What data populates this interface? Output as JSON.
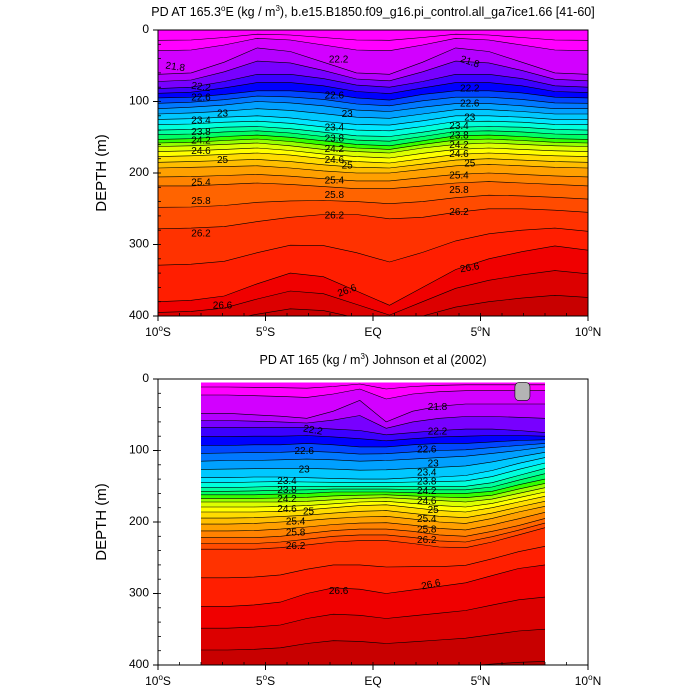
{
  "colors": {
    "palette": [
      "#ff00ff",
      "#d200ff",
      "#b400ff",
      "#7800ff",
      "#3c00ff",
      "#0000ff",
      "#0046ff",
      "#0078ff",
      "#00a0ff",
      "#00c8ff",
      "#00e6ff",
      "#00ffdc",
      "#00ffa0",
      "#00ff64",
      "#32ff00",
      "#96ff00",
      "#dcff00",
      "#ffff00",
      "#ffdc00",
      "#ffbe00",
      "#ffa000",
      "#ff8200",
      "#ff6400",
      "#ff4b00",
      "#ff3200",
      "#ff1e00",
      "#f00000",
      "#dc0000",
      "#c80000",
      "#b40000"
    ],
    "missing": "#b4b4b4"
  },
  "chart_data": [
    {
      "type": "contour",
      "title": "PD AT 165.3°E (kg / m³), b.e15.B1850.f09_g16.pi_control.all_ga7ice1.66 [41-60]",
      "title_parts": {
        "pre": "PD AT 165.3",
        "deg": "o",
        "mid": "E (kg / m",
        "exp": "3",
        "post": "), b.e15.B1850.f09_g16.pi_control.all_ga7ice1.66 [41-60]"
      },
      "ylabel": "DEPTH (m)",
      "xlim": [
        -10,
        10
      ],
      "ylim": [
        0,
        400
      ],
      "x_ticks": [
        {
          "v": -10,
          "num": "10",
          "deg": "o",
          "suf": "S"
        },
        {
          "v": -5,
          "num": "5",
          "deg": "o",
          "suf": "S"
        },
        {
          "v": 0,
          "num": "EQ",
          "deg": "",
          "suf": ""
        },
        {
          "v": 5,
          "num": "5",
          "deg": "o",
          "suf": "N"
        },
        {
          "v": 10,
          "num": "10",
          "deg": "o",
          "suf": "N"
        }
      ],
      "y_ticks": [
        {
          "v": 0,
          "label": "0"
        },
        {
          "v": 100,
          "label": "100"
        },
        {
          "v": 200,
          "label": "200"
        },
        {
          "v": 300,
          "label": "300"
        },
        {
          "v": 400,
          "label": "400"
        }
      ],
      "data_lon_range": [
        -10,
        10
      ],
      "contour_interval": 0.2,
      "levels_min": 21.4,
      "levels_max": 27.2,
      "contour_depths": [
        {
          "level": 21.8,
          "d": [
            62,
            60,
            45,
            25,
            30,
            45,
            60,
            62,
            45,
            25,
            30,
            45,
            60,
            62
          ]
        },
        {
          "level": 22.2,
          "d": [
            82,
            80,
            72,
            62,
            62,
            68,
            77,
            80,
            72,
            62,
            62,
            68,
            78,
            80
          ]
        },
        {
          "level": 22.6,
          "d": [
            95,
            94,
            90,
            85,
            85,
            88,
            95,
            98,
            90,
            85,
            85,
            88,
            94,
            95
          ]
        },
        {
          "level": 23.0,
          "d": [
            110,
            108,
            105,
            100,
            102,
            106,
            112,
            114,
            108,
            103,
            103,
            106,
            110,
            110
          ]
        },
        {
          "level": 23.4,
          "d": [
            125,
            124,
            122,
            120,
            123,
            128,
            132,
            133,
            127,
            120,
            120,
            122,
            125,
            125
          ]
        },
        {
          "level": 23.8,
          "d": [
            140,
            139,
            136,
            135,
            138,
            143,
            148,
            149,
            143,
            136,
            135,
            136,
            139,
            140
          ]
        },
        {
          "level": 24.2,
          "d": [
            153,
            152,
            149,
            147,
            150,
            155,
            160,
            162,
            155,
            148,
            147,
            149,
            152,
            153
          ]
        },
        {
          "level": 24.6,
          "d": [
            163,
            162,
            160,
            158,
            162,
            167,
            170,
            172,
            165,
            160,
            158,
            160,
            162,
            163
          ]
        },
        {
          "level": 25.0,
          "d": [
            177,
            176,
            174,
            172,
            175,
            180,
            184,
            186,
            180,
            174,
            172,
            174,
            176,
            177
          ]
        },
        {
          "level": 25.4,
          "d": [
            193,
            192,
            191,
            190,
            193,
            197,
            200,
            200,
            195,
            190,
            188,
            190,
            192,
            193
          ]
        },
        {
          "level": 25.8,
          "d": [
            218,
            218,
            216,
            214,
            216,
            219,
            222,
            222,
            218,
            214,
            212,
            214,
            216,
            218
          ]
        },
        {
          "level": 26.2,
          "d": [
            278,
            277,
            275,
            268,
            262,
            258,
            258,
            264,
            262,
            255,
            250,
            250,
            252,
            255
          ]
        },
        {
          "level": 26.6,
          "d": [
            380,
            378,
            372,
            355,
            340,
            345,
            365,
            385,
            360,
            335,
            320,
            310,
            302,
            308
          ]
        }
      ],
      "contour_labels": [
        {
          "text": "21.8",
          "lon": -9.2,
          "depth": 52,
          "rot": 8
        },
        {
          "text": "22.2",
          "lon": -8.0,
          "depth": 80,
          "rot": 8
        },
        {
          "text": "22.6",
          "lon": -8.0,
          "depth": 95,
          "rot": 0
        },
        {
          "text": "23",
          "lon": -7.0,
          "depth": 117,
          "rot": 0
        },
        {
          "text": "23.4",
          "lon": -8.0,
          "depth": 127,
          "rot": 0
        },
        {
          "text": "23.8",
          "lon": -8.0,
          "depth": 143,
          "rot": 0
        },
        {
          "text": "24.2",
          "lon": -8.0,
          "depth": 155,
          "rot": 0
        },
        {
          "text": "24.6",
          "lon": -8.0,
          "depth": 170,
          "rot": 0
        },
        {
          "text": "25",
          "lon": -7.0,
          "depth": 182,
          "rot": 0
        },
        {
          "text": "25.4",
          "lon": -8.0,
          "depth": 214,
          "rot": 0
        },
        {
          "text": "25.8",
          "lon": -8.0,
          "depth": 240,
          "rot": 0
        },
        {
          "text": "26.2",
          "lon": -8.0,
          "depth": 285,
          "rot": 0
        },
        {
          "text": "26.6",
          "lon": -7.0,
          "depth": 386,
          "rot": 0
        },
        {
          "text": "22.2",
          "lon": -1.6,
          "depth": 42,
          "rot": 0
        },
        {
          "text": "22.6",
          "lon": -1.8,
          "depth": 92,
          "rot": 0
        },
        {
          "text": "23",
          "lon": -1.2,
          "depth": 118,
          "rot": 0
        },
        {
          "text": "23.4",
          "lon": -1.8,
          "depth": 137,
          "rot": 0
        },
        {
          "text": "23.8",
          "lon": -1.8,
          "depth": 152,
          "rot": 0
        },
        {
          "text": "24.2",
          "lon": -1.8,
          "depth": 167,
          "rot": 0
        },
        {
          "text": "24.6",
          "lon": -1.8,
          "depth": 182,
          "rot": 0
        },
        {
          "text": "25",
          "lon": -1.2,
          "depth": 190,
          "rot": 0
        },
        {
          "text": "25.4",
          "lon": -1.8,
          "depth": 211,
          "rot": 0
        },
        {
          "text": "25.8",
          "lon": -1.8,
          "depth": 231,
          "rot": 0
        },
        {
          "text": "26.2",
          "lon": -1.8,
          "depth": 260,
          "rot": 0
        },
        {
          "text": "26.6",
          "lon": -1.2,
          "depth": 365,
          "rot": -20
        },
        {
          "text": "21.8",
          "lon": 4.5,
          "depth": 45,
          "rot": 18
        },
        {
          "text": "22.2",
          "lon": 4.5,
          "depth": 82,
          "rot": 0
        },
        {
          "text": "22.6",
          "lon": 4.5,
          "depth": 103,
          "rot": 0
        },
        {
          "text": "23",
          "lon": 4.5,
          "depth": 123,
          "rot": 0
        },
        {
          "text": "23.4",
          "lon": 4.0,
          "depth": 135,
          "rot": 0
        },
        {
          "text": "23.8",
          "lon": 4.0,
          "depth": 148,
          "rot": 0
        },
        {
          "text": "24.2",
          "lon": 4.0,
          "depth": 161,
          "rot": 0
        },
        {
          "text": "24.6",
          "lon": 4.0,
          "depth": 174,
          "rot": 0
        },
        {
          "text": "25",
          "lon": 4.5,
          "depth": 187,
          "rot": 0
        },
        {
          "text": "25.4",
          "lon": 4.0,
          "depth": 204,
          "rot": 0
        },
        {
          "text": "25.8",
          "lon": 4.0,
          "depth": 224,
          "rot": 0
        },
        {
          "text": "26.2",
          "lon": 4.0,
          "depth": 255,
          "rot": 0
        },
        {
          "text": "26.6",
          "lon": 4.5,
          "depth": 333,
          "rot": -10
        }
      ]
    },
    {
      "type": "contour",
      "title": "PD AT 165 (kg / m³) Johnson et al (2002)",
      "title_parts": {
        "pre": "PD AT 165 (kg / m",
        "deg": "",
        "mid": "",
        "exp": "3",
        "post": ") Johnson et al (2002)"
      },
      "ylabel": "DEPTH (m)",
      "xlim": [
        -10,
        10
      ],
      "ylim": [
        0,
        400
      ],
      "x_ticks": [
        {
          "v": -10,
          "num": "10",
          "deg": "o",
          "suf": "S"
        },
        {
          "v": -5,
          "num": "5",
          "deg": "o",
          "suf": "S"
        },
        {
          "v": 0,
          "num": "EQ",
          "deg": "",
          "suf": ""
        },
        {
          "v": 5,
          "num": "5",
          "deg": "o",
          "suf": "N"
        },
        {
          "v": 10,
          "num": "10",
          "deg": "o",
          "suf": "N"
        }
      ],
      "y_ticks": [
        {
          "v": 0,
          "label": "0"
        },
        {
          "v": 100,
          "label": "100"
        },
        {
          "v": 200,
          "label": "200"
        },
        {
          "v": 300,
          "label": "300"
        },
        {
          "v": 400,
          "label": "400"
        }
      ],
      "data_lon_range": [
        -8,
        8
      ],
      "data_depth_top": 5,
      "contour_interval": 0.2,
      "levels_min": 21.4,
      "levels_max": 27.2,
      "contour_depths": [
        {
          "level": 21.8,
          "d": [
            48,
            48,
            50,
            52,
            55,
            45,
            30,
            60,
            45,
            38,
            35,
            35,
            35,
            35
          ]
        },
        {
          "level": 22.2,
          "d": [
            68,
            68,
            68,
            68,
            68,
            70,
            72,
            78,
            75,
            72,
            70,
            70,
            72,
            75
          ]
        },
        {
          "level": 22.6,
          "d": [
            93,
            93,
            92,
            92,
            90,
            92,
            95,
            95,
            92,
            90,
            90,
            88,
            86,
            85
          ]
        },
        {
          "level": 23.0,
          "d": [
            115,
            114,
            114,
            113,
            112,
            113,
            115,
            114,
            112,
            110,
            108,
            104,
            100,
            95
          ]
        },
        {
          "level": 23.4,
          "d": [
            138,
            138,
            137,
            137,
            138,
            139,
            140,
            140,
            138,
            137,
            135,
            128,
            118,
            110
          ]
        },
        {
          "level": 23.8,
          "d": [
            152,
            152,
            151,
            150,
            150,
            150,
            150,
            150,
            150,
            150,
            150,
            145,
            135,
            125
          ]
        },
        {
          "level": 24.2,
          "d": [
            162,
            162,
            162,
            161,
            160,
            158,
            158,
            158,
            159,
            160,
            160,
            157,
            148,
            140
          ]
        },
        {
          "level": 24.6,
          "d": [
            172,
            172,
            172,
            172,
            171,
            169,
            167,
            166,
            168,
            170,
            172,
            168,
            160,
            152
          ]
        },
        {
          "level": 25.0,
          "d": [
            186,
            186,
            186,
            185,
            183,
            180,
            177,
            176,
            180,
            184,
            186,
            180,
            172,
            164
          ]
        },
        {
          "level": 25.4,
          "d": [
            203,
            203,
            202,
            200,
            198,
            195,
            193,
            192,
            196,
            200,
            202,
            195,
            186,
            178
          ]
        },
        {
          "level": 25.8,
          "d": [
            222,
            222,
            222,
            220,
            216,
            212,
            210,
            210,
            213,
            218,
            220,
            213,
            205,
            195
          ]
        },
        {
          "level": 26.2,
          "d": [
            238,
            238,
            238,
            236,
            232,
            228,
            226,
            226,
            230,
            235,
            236,
            228,
            218,
            208
          ]
        },
        {
          "level": 26.6,
          "d": [
            318,
            318,
            316,
            312,
            300,
            292,
            294,
            300,
            295,
            290,
            285,
            275,
            265,
            260
          ]
        }
      ],
      "contour_labels": [
        {
          "text": "21.8",
          "lon": 3.0,
          "depth": 40,
          "rot": 0
        },
        {
          "text": "22.2",
          "lon": -2.8,
          "depth": 72,
          "rot": 10
        },
        {
          "text": "22.2",
          "lon": 3.0,
          "depth": 74,
          "rot": 0
        },
        {
          "text": "22.6",
          "lon": -3.2,
          "depth": 101,
          "rot": 0
        },
        {
          "text": "22.6",
          "lon": 2.5,
          "depth": 99,
          "rot": 0
        },
        {
          "text": "23",
          "lon": -3.2,
          "depth": 127,
          "rot": 0
        },
        {
          "text": "23",
          "lon": 2.8,
          "depth": 119,
          "rot": 0
        },
        {
          "text": "23.4",
          "lon": -4.0,
          "depth": 143,
          "rot": 0
        },
        {
          "text": "23.4",
          "lon": 2.5,
          "depth": 131,
          "rot": 0
        },
        {
          "text": "23.8",
          "lon": -4.0,
          "depth": 156,
          "rot": 0
        },
        {
          "text": "23.8",
          "lon": 2.5,
          "depth": 144,
          "rot": 0
        },
        {
          "text": "24.2",
          "lon": -4.0,
          "depth": 168,
          "rot": 0
        },
        {
          "text": "24.2",
          "lon": 2.5,
          "depth": 157,
          "rot": 0
        },
        {
          "text": "24.6",
          "lon": -4.0,
          "depth": 182,
          "rot": 0
        },
        {
          "text": "24.6",
          "lon": 2.5,
          "depth": 171,
          "rot": 0
        },
        {
          "text": "25",
          "lon": -3.0,
          "depth": 186,
          "rot": 0
        },
        {
          "text": "25",
          "lon": 2.8,
          "depth": 184,
          "rot": 0
        },
        {
          "text": "25.4",
          "lon": -3.6,
          "depth": 200,
          "rot": 0
        },
        {
          "text": "25.4",
          "lon": 2.5,
          "depth": 196,
          "rot": 0
        },
        {
          "text": "25.8",
          "lon": -3.6,
          "depth": 215,
          "rot": 0
        },
        {
          "text": "25.8",
          "lon": 2.5,
          "depth": 211,
          "rot": 0
        },
        {
          "text": "26.2",
          "lon": -3.6,
          "depth": 234,
          "rot": 0
        },
        {
          "text": "26.2",
          "lon": 2.5,
          "depth": 226,
          "rot": 0
        },
        {
          "text": "26.6",
          "lon": -1.6,
          "depth": 297,
          "rot": 0
        },
        {
          "text": "26.6",
          "lon": 2.7,
          "depth": 288,
          "rot": -12
        }
      ]
    }
  ]
}
